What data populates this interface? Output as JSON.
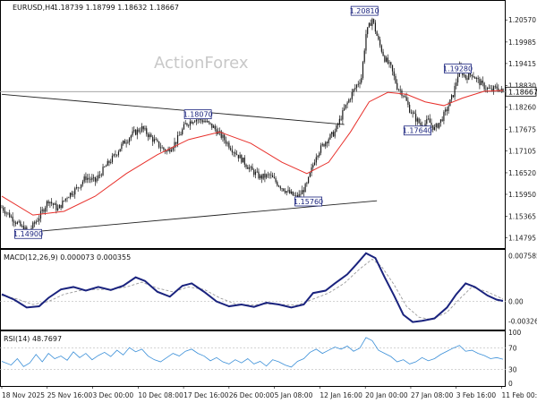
{
  "header": {
    "symbol": "EURUSD,H4",
    "ohlc": "1.18739 1.18799 1.18632 1.18667"
  },
  "watermark": "ActionForex",
  "current_price_label": "1.18667",
  "chart_data": [
    {
      "type": "candlestick",
      "title": "EURUSD,H4",
      "y_ticks": [
        "1.20570",
        "1.19985",
        "1.19415",
        "1.18830",
        "1.18260",
        "1.17675",
        "1.17105",
        "1.16520",
        "1.15950",
        "1.15365",
        "1.14795"
      ],
      "y_range": [
        1.1455,
        1.2105
      ],
      "x_ticks": [
        "18 Nov 2025",
        "25 Nov 16:00",
        "3 Dec 00:00",
        "10 Dec 08:00",
        "17 Dec 16:00",
        "26 Dec 00:00",
        "5 Jan 08:00",
        "12 Jan 16:00",
        "20 Jan 00:00",
        "27 Jan 08:00",
        "3 Feb 16:00",
        "11 Feb 00:00"
      ],
      "close_path": [
        [
          0,
          1.156
        ],
        [
          6,
          1.1535
        ],
        [
          12,
          1.151
        ],
        [
          17,
          1.1495
        ],
        [
          24,
          1.1535
        ],
        [
          30,
          1.158
        ],
        [
          36,
          1.1555
        ],
        [
          42,
          1.159
        ],
        [
          48,
          1.161
        ],
        [
          54,
          1.164
        ],
        [
          60,
          1.163
        ],
        [
          66,
          1.1665
        ],
        [
          72,
          1.1695
        ],
        [
          78,
          1.173
        ],
        [
          84,
          1.1755
        ],
        [
          90,
          1.177
        ],
        [
          96,
          1.1745
        ],
        [
          102,
          1.172
        ],
        [
          106,
          1.1708
        ],
        [
          112,
          1.1735
        ],
        [
          118,
          1.178
        ],
        [
          124,
          1.1795
        ],
        [
          130,
          1.179
        ],
        [
          136,
          1.1772
        ],
        [
          142,
          1.1745
        ],
        [
          148,
          1.1715
        ],
        [
          154,
          1.1688
        ],
        [
          160,
          1.166
        ],
        [
          166,
          1.164
        ],
        [
          172,
          1.1645
        ],
        [
          178,
          1.162
        ],
        [
          184,
          1.16
        ],
        [
          190,
          1.1585
        ],
        [
          196,
          1.162
        ],
        [
          202,
          1.17
        ],
        [
          208,
          1.1735
        ],
        [
          214,
          1.176
        ],
        [
          220,
          1.182
        ],
        [
          226,
          1.187
        ],
        [
          231,
          1.1905
        ],
        [
          234,
          1.202
        ],
        [
          238,
          1.206
        ],
        [
          242,
          1.2
        ],
        [
          246,
          1.1955
        ],
        [
          250,
          1.193
        ],
        [
          254,
          1.188
        ],
        [
          258,
          1.186
        ],
        [
          262,
          1.182
        ],
        [
          266,
          1.1795
        ],
        [
          270,
          1.1775
        ],
        [
          274,
          1.179
        ],
        [
          278,
          1.1768
        ],
        [
          282,
          1.179
        ],
        [
          286,
          1.182
        ],
        [
          290,
          1.186
        ],
        [
          294,
          1.1928
        ],
        [
          298,
          1.1905
        ],
        [
          302,
          1.1915
        ],
        [
          306,
          1.1895
        ],
        [
          310,
          1.188
        ],
        [
          314,
          1.187
        ],
        [
          318,
          1.1878
        ],
        [
          322,
          1.1866
        ]
      ],
      "ma_path": [
        [
          0,
          1.159
        ],
        [
          20,
          1.154
        ],
        [
          40,
          1.155
        ],
        [
          60,
          1.159
        ],
        [
          80,
          1.165
        ],
        [
          100,
          1.17
        ],
        [
          120,
          1.174
        ],
        [
          140,
          1.176
        ],
        [
          160,
          1.173
        ],
        [
          180,
          1.168
        ],
        [
          196,
          1.165
        ],
        [
          210,
          1.168
        ],
        [
          224,
          1.176
        ],
        [
          236,
          1.184
        ],
        [
          248,
          1.1865
        ],
        [
          260,
          1.186
        ],
        [
          272,
          1.184
        ],
        [
          284,
          1.183
        ],
        [
          296,
          1.185
        ],
        [
          310,
          1.1868
        ],
        [
          322,
          1.187
        ]
      ],
      "trendlines": [
        {
          "from": [
            0,
            1.186
          ],
          "to": [
            220,
            1.178
          ]
        },
        {
          "from": [
            18,
            1.1495
          ],
          "to": [
            241,
            1.1578
          ]
        }
      ],
      "reference_line": 1.1867,
      "annotations": [
        {
          "text": "1.14900",
          "x": 17,
          "y": 1.149
        },
        {
          "text": "1.18070",
          "x": 126,
          "y": 1.1807
        },
        {
          "text": "1.15760",
          "x": 197,
          "y": 1.1576
        },
        {
          "text": "1.20810",
          "x": 233,
          "y": 1.2081
        },
        {
          "text": "1.19280",
          "x": 293,
          "y": 1.1928
        },
        {
          "text": "1.17640",
          "x": 267,
          "y": 1.1764
        }
      ]
    },
    {
      "type": "line",
      "title": "MACD(12,26,9) 0.000073 0.000355",
      "y_ticks": [
        "0.007585",
        "0.00",
        "-0.003264"
      ],
      "y_range": [
        -0.0045,
        0.0084
      ],
      "zero_line": 0,
      "series": [
        {
          "name": "MACD",
          "values": [
            [
              0,
              0.0012
            ],
            [
              8,
              0.0003
            ],
            [
              16,
              -0.001
            ],
            [
              24,
              -0.0008
            ],
            [
              30,
              0.0006
            ],
            [
              38,
              0.002
            ],
            [
              46,
              0.0024
            ],
            [
              54,
              0.0018
            ],
            [
              62,
              0.0024
            ],
            [
              70,
              0.0019
            ],
            [
              78,
              0.0026
            ],
            [
              86,
              0.004
            ],
            [
              92,
              0.0034
            ],
            [
              100,
              0.0016
            ],
            [
              108,
              0.0008
            ],
            [
              116,
              0.0026
            ],
            [
              122,
              0.003
            ],
            [
              130,
              0.0016
            ],
            [
              138,
              0.0
            ],
            [
              146,
              -0.0008
            ],
            [
              154,
              -0.0005
            ],
            [
              162,
              -0.0009
            ],
            [
              170,
              -0.0002
            ],
            [
              178,
              -0.0005
            ],
            [
              186,
              -0.001
            ],
            [
              194,
              -0.0005
            ],
            [
              200,
              0.0014
            ],
            [
              208,
              0.0018
            ],
            [
              214,
              0.003
            ],
            [
              222,
              0.0045
            ],
            [
              228,
              0.0062
            ],
            [
              234,
              0.008
            ],
            [
              240,
              0.0072
            ],
            [
              246,
              0.004
            ],
            [
              252,
              0.001
            ],
            [
              258,
              -0.0022
            ],
            [
              264,
              -0.0034
            ],
            [
              270,
              -0.0032
            ],
            [
              278,
              -0.0028
            ],
            [
              286,
              -0.001
            ],
            [
              292,
              0.0012
            ],
            [
              298,
              0.003
            ],
            [
              304,
              0.0024
            ],
            [
              312,
              0.001
            ],
            [
              318,
              0.0003
            ],
            [
              322,
              0.0001
            ]
          ]
        },
        {
          "name": "Signal",
          "values": [
            [
              0,
              0.001
            ],
            [
              10,
              0.0004
            ],
            [
              20,
              -0.0005
            ],
            [
              30,
              0.0
            ],
            [
              40,
              0.0012
            ],
            [
              50,
              0.0018
            ],
            [
              60,
              0.002
            ],
            [
              70,
              0.002
            ],
            [
              80,
              0.0024
            ],
            [
              90,
              0.0032
            ],
            [
              100,
              0.0022
            ],
            [
              110,
              0.0016
            ],
            [
              120,
              0.0024
            ],
            [
              130,
              0.002
            ],
            [
              140,
              0.0006
            ],
            [
              150,
              -0.0004
            ],
            [
              160,
              -0.0006
            ],
            [
              170,
              -0.0004
            ],
            [
              180,
              -0.0005
            ],
            [
              190,
              -0.0006
            ],
            [
              200,
              0.0004
            ],
            [
              210,
              0.0014
            ],
            [
              220,
              0.003
            ],
            [
              230,
              0.0054
            ],
            [
              238,
              0.007
            ],
            [
              244,
              0.0058
            ],
            [
              252,
              0.0028
            ],
            [
              260,
              -0.0008
            ],
            [
              268,
              -0.0026
            ],
            [
              276,
              -0.003
            ],
            [
              286,
              -0.0018
            ],
            [
              294,
              0.0004
            ],
            [
              302,
              0.0024
            ],
            [
              312,
              0.0016
            ],
            [
              322,
              0.0004
            ]
          ]
        }
      ]
    },
    {
      "type": "line",
      "title": "RSI(14) 48.7697",
      "y_ticks": [
        "100",
        "70",
        "30",
        "0"
      ],
      "y_range": [
        0,
        100
      ],
      "series": [
        {
          "name": "RSI",
          "values": [
            [
              0,
              45
            ],
            [
              6,
              38
            ],
            [
              10,
              50
            ],
            [
              14,
              35
            ],
            [
              18,
              42
            ],
            [
              22,
              58
            ],
            [
              26,
              44
            ],
            [
              30,
              60
            ],
            [
              34,
              50
            ],
            [
              38,
              55
            ],
            [
              42,
              47
            ],
            [
              46,
              63
            ],
            [
              50,
              52
            ],
            [
              54,
              60
            ],
            [
              58,
              48
            ],
            [
              62,
              56
            ],
            [
              66,
              62
            ],
            [
              70,
              54
            ],
            [
              74,
              66
            ],
            [
              78,
              57
            ],
            [
              82,
              71
            ],
            [
              86,
              63
            ],
            [
              90,
              68
            ],
            [
              94,
              55
            ],
            [
              98,
              48
            ],
            [
              102,
              44
            ],
            [
              106,
              52
            ],
            [
              110,
              60
            ],
            [
              114,
              55
            ],
            [
              118,
              64
            ],
            [
              122,
              68
            ],
            [
              126,
              60
            ],
            [
              130,
              55
            ],
            [
              134,
              46
            ],
            [
              138,
              52
            ],
            [
              142,
              44
            ],
            [
              146,
              40
            ],
            [
              150,
              48
            ],
            [
              154,
              42
            ],
            [
              158,
              50
            ],
            [
              162,
              40
            ],
            [
              166,
              45
            ],
            [
              170,
              36
            ],
            [
              174,
              48
            ],
            [
              178,
              44
            ],
            [
              182,
              38
            ],
            [
              186,
              34
            ],
            [
              190,
              45
            ],
            [
              194,
              50
            ],
            [
              198,
              62
            ],
            [
              202,
              68
            ],
            [
              206,
              60
            ],
            [
              210,
              66
            ],
            [
              214,
              72
            ],
            [
              218,
              68
            ],
            [
              222,
              74
            ],
            [
              226,
              64
            ],
            [
              230,
              70
            ],
            [
              234,
              90
            ],
            [
              238,
              84
            ],
            [
              242,
              66
            ],
            [
              246,
              60
            ],
            [
              250,
              54
            ],
            [
              254,
              44
            ],
            [
              258,
              48
            ],
            [
              262,
              40
            ],
            [
              266,
              44
            ],
            [
              270,
              52
            ],
            [
              274,
              46
            ],
            [
              278,
              50
            ],
            [
              282,
              58
            ],
            [
              286,
              64
            ],
            [
              290,
              70
            ],
            [
              294,
              75
            ],
            [
              298,
              64
            ],
            [
              302,
              66
            ],
            [
              306,
              60
            ],
            [
              310,
              56
            ],
            [
              314,
              50
            ],
            [
              318,
              52
            ],
            [
              322,
              49
            ]
          ]
        }
      ]
    }
  ]
}
